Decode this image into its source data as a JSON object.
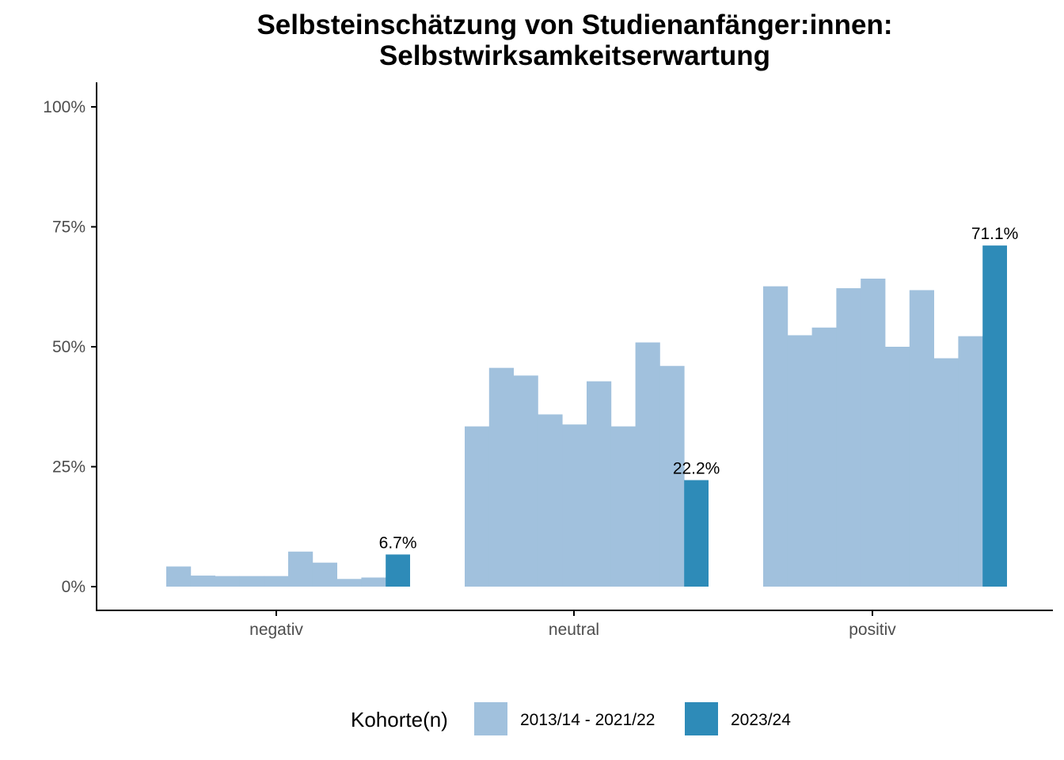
{
  "chart_data": {
    "type": "bar",
    "title": [
      "Selbsteinschätzung von Studienanfänger:innen:",
      "Selbstwirksamkeitserwartung"
    ],
    "xlabel": "",
    "ylabel": "",
    "categories": [
      "negativ",
      "neutral",
      "positiv"
    ],
    "ylim": [
      0,
      1.05
    ],
    "yticks": [
      0,
      0.25,
      0.5,
      0.75,
      1.0
    ],
    "ytick_labels": [
      "0%",
      "25%",
      "50%",
      "75%",
      "100%"
    ],
    "grid": false,
    "legend": {
      "title": "Kohorte(n)",
      "position": "bottom",
      "entries": [
        {
          "label": "2013/14 - 2021/22",
          "color": "#a1c1dd"
        },
        {
          "label": "2023/24",
          "color": "#2e8bb8"
        }
      ]
    },
    "series": [
      {
        "name": "2013/14 - 2021/22",
        "color": "#a1c1dd",
        "values_per_category": [
          [
            0.042,
            0.023,
            0.022,
            0.022,
            0.022,
            0.073,
            0.05,
            0.016,
            0.019
          ],
          [
            0.334,
            0.456,
            0.44,
            0.359,
            0.338,
            0.428,
            0.334,
            0.509,
            0.46
          ],
          [
            0.626,
            0.524,
            0.54,
            0.622,
            0.642,
            0.5,
            0.618,
            0.476,
            0.522
          ]
        ]
      },
      {
        "name": "2023/24",
        "color": "#2e8bb8",
        "values": [
          0.067,
          0.222,
          0.711
        ],
        "labels": [
          "6.7%",
          "22.2%",
          "71.1%"
        ]
      }
    ]
  }
}
